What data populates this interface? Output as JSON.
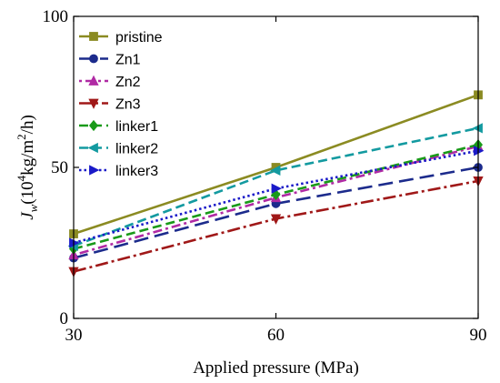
{
  "chart_data": {
    "type": "line",
    "x": [
      30,
      60,
      90
    ],
    "xlim": [
      30,
      90
    ],
    "ylim": [
      0,
      100
    ],
    "xticks": [
      30,
      60,
      90
    ],
    "yticks": [
      0,
      50,
      100
    ],
    "xlabel": "Applied pressure (MPa)",
    "ylabel": {
      "var": "J",
      "sub": "w",
      "pre": "(10",
      "sup1": "4",
      "mid": "kg/m",
      "sup2": "2",
      "post": "/h)"
    },
    "grid": false,
    "legend_position": "top-left",
    "series": [
      {
        "name": "pristine",
        "values": [
          28,
          50,
          74
        ],
        "color": "#8b8b22",
        "dash": "solid",
        "marker": "square"
      },
      {
        "name": "Zn1",
        "values": [
          20,
          38,
          50
        ],
        "color": "#1c2b8c",
        "dash": "long-dash",
        "marker": "circle"
      },
      {
        "name": "Zn2",
        "values": [
          21,
          40,
          57
        ],
        "color": "#b02aa4",
        "dash": "dot-dash",
        "marker": "triangle-up"
      },
      {
        "name": "Zn3",
        "values": [
          15.5,
          33,
          45.5
        ],
        "color": "#a01818",
        "dash": "dash-dot",
        "marker": "triangle-down"
      },
      {
        "name": "linker1",
        "values": [
          23,
          41,
          57.5
        ],
        "color": "#199a19",
        "dash": "dash",
        "marker": "diamond"
      },
      {
        "name": "linker2",
        "values": [
          24,
          49,
          63
        ],
        "color": "#139aa0",
        "dash": "dash",
        "marker": "triangle-left"
      },
      {
        "name": "linker3",
        "values": [
          25,
          43,
          55.5
        ],
        "color": "#1a1ac8",
        "dash": "dot",
        "marker": "triangle-right"
      }
    ]
  }
}
